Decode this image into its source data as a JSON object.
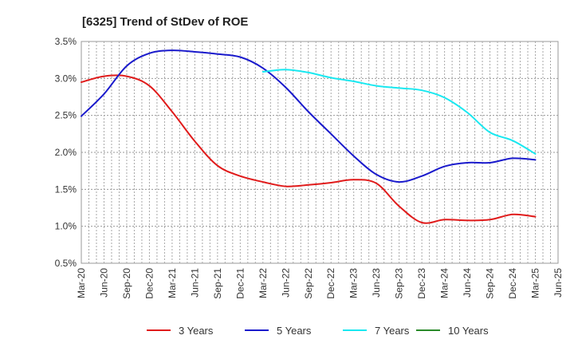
{
  "chart_data": {
    "type": "line",
    "title": "[6325]  Trend of StDev of ROE",
    "xlabel": "",
    "ylabel": "",
    "x_ticks": [
      "Mar-20",
      "Jun-20",
      "Sep-20",
      "Dec-20",
      "Mar-21",
      "Jun-21",
      "Sep-21",
      "Dec-21",
      "Mar-22",
      "Jun-22",
      "Sep-22",
      "Dec-22",
      "Mar-23",
      "Jun-23",
      "Sep-23",
      "Dec-23",
      "Mar-24",
      "Jun-24",
      "Sep-24",
      "Dec-24",
      "Mar-25",
      "Jun-25"
    ],
    "y_ticks": [
      "0.5%",
      "1.0%",
      "1.5%",
      "2.0%",
      "2.5%",
      "3.0%",
      "3.5%"
    ],
    "ylim": [
      0.5,
      3.5
    ],
    "grid": true,
    "legend_position": "bottom",
    "series": [
      {
        "name": "3 Years",
        "color": "#e01b1b",
        "values": [
          2.95,
          3.03,
          3.03,
          2.9,
          2.55,
          2.15,
          1.82,
          1.68,
          1.6,
          1.54,
          1.56,
          1.59,
          1.63,
          1.58,
          1.27,
          1.05,
          1.09,
          1.08,
          1.09,
          1.16,
          1.13,
          null
        ]
      },
      {
        "name": "5 Years",
        "color": "#1a1acc",
        "values": [
          2.49,
          2.79,
          3.17,
          3.34,
          3.38,
          3.36,
          3.33,
          3.29,
          3.14,
          2.88,
          2.55,
          2.25,
          1.95,
          1.7,
          1.6,
          1.68,
          1.81,
          1.86,
          1.86,
          1.92,
          1.9,
          null
        ]
      },
      {
        "name": "7 Years",
        "color": "#19e8f0",
        "values": [
          null,
          null,
          null,
          null,
          null,
          null,
          null,
          null,
          3.09,
          3.12,
          3.08,
          3.01,
          2.96,
          2.9,
          2.87,
          2.84,
          2.74,
          2.54,
          2.27,
          2.16,
          1.98,
          null
        ]
      },
      {
        "name": "10 Years",
        "color": "#2a8a2a",
        "values": []
      }
    ]
  }
}
